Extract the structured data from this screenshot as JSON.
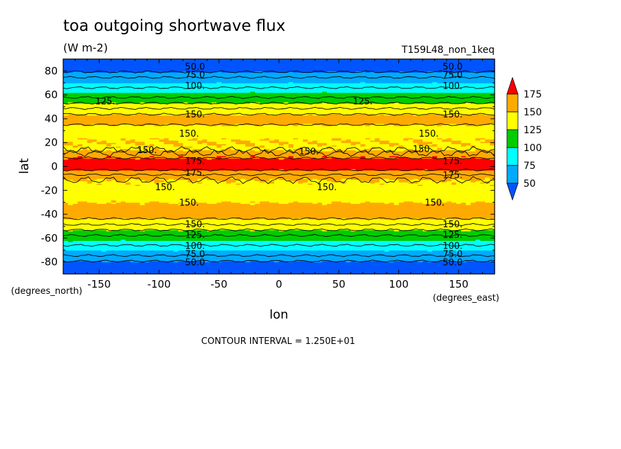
{
  "chart_data": {
    "type": "heatmap",
    "title": "toa outgoing shortwave flux",
    "units": "(W m-2)",
    "run_label": "T159L48_non_1keq",
    "xlabel": "lon",
    "ylabel": "lat",
    "x_unit_label": "(degrees_east)",
    "y_unit_label": "(degrees_north)",
    "xlim": [
      -180,
      180
    ],
    "ylim": [
      -90,
      90
    ],
    "x_ticks": [
      -150,
      -100,
      -50,
      0,
      50,
      100,
      150
    ],
    "x_tick_labels": [
      "-150",
      "-100",
      "-50",
      "0",
      "50",
      "100",
      "150"
    ],
    "y_ticks": [
      -80,
      -60,
      -40,
      -20,
      0,
      20,
      40,
      60,
      80
    ],
    "y_tick_labels": [
      "-80",
      "-60",
      "-40",
      "-20",
      "0",
      "20",
      "40",
      "60",
      "80"
    ],
    "levels": [
      50,
      75,
      100,
      125,
      150,
      175
    ],
    "level_labels": [
      "50",
      "75",
      "100",
      "125",
      "150",
      "175"
    ],
    "colors": [
      "#0055ff",
      "#00aaff",
      "#00ffff",
      "#00cc00",
      "#ffff00",
      "#ffaa00",
      "#ff0000"
    ],
    "colorbar": "right, extended both ends",
    "contour_interval_text": "CONTOUR INTERVAL = 1.250E+01",
    "zonal_profile": {
      "lat": [
        -90,
        -80,
        -70,
        -62,
        -58,
        -52,
        -46,
        -40,
        -30,
        -20,
        -12,
        -5,
        0,
        5,
        10,
        15,
        20,
        30,
        40,
        46,
        52,
        58,
        62,
        70,
        80,
        90
      ],
      "flux": [
        30,
        48,
        75,
        100,
        112,
        128,
        145,
        158,
        150,
        140,
        148,
        168,
        185,
        180,
        168,
        145,
        150,
        142,
        158,
        145,
        128,
        112,
        100,
        75,
        48,
        30
      ]
    },
    "contour_labels": [
      {
        "text": "50.0",
        "lon": -70,
        "lat": 84
      },
      {
        "text": "50.0",
        "lon": 145,
        "lat": 84
      },
      {
        "text": "75.0",
        "lon": -70,
        "lat": 77
      },
      {
        "text": "75.0",
        "lon": 145,
        "lat": 77
      },
      {
        "text": "100.",
        "lon": -70,
        "lat": 68
      },
      {
        "text": "100.",
        "lon": 145,
        "lat": 68
      },
      {
        "text": "125.",
        "lon": -145,
        "lat": 55
      },
      {
        "text": "125.",
        "lon": 70,
        "lat": 55
      },
      {
        "text": "150.",
        "lon": -70,
        "lat": 44
      },
      {
        "text": "150.",
        "lon": 145,
        "lat": 44
      },
      {
        "text": "150.",
        "lon": -75,
        "lat": 28
      },
      {
        "text": "150.",
        "lon": 125,
        "lat": 28
      },
      {
        "text": "150.",
        "lon": -110,
        "lat": 14
      },
      {
        "text": "150.",
        "lon": 25,
        "lat": 13
      },
      {
        "text": "150.",
        "lon": 120,
        "lat": 15
      },
      {
        "text": "175.",
        "lon": -70,
        "lat": 5
      },
      {
        "text": "175.",
        "lon": 145,
        "lat": 5
      },
      {
        "text": "175.",
        "lon": -70,
        "lat": -5
      },
      {
        "text": "175.",
        "lon": 145,
        "lat": -7
      },
      {
        "text": "150.",
        "lon": -95,
        "lat": -17
      },
      {
        "text": "150.",
        "lon": 40,
        "lat": -17
      },
      {
        "text": "150.",
        "lon": -75,
        "lat": -30
      },
      {
        "text": "150.",
        "lon": 130,
        "lat": -30
      },
      {
        "text": "150.",
        "lon": -70,
        "lat": -48
      },
      {
        "text": "150.",
        "lon": 145,
        "lat": -48
      },
      {
        "text": "125.",
        "lon": -70,
        "lat": -57
      },
      {
        "text": "125.",
        "lon": 145,
        "lat": -57
      },
      {
        "text": "100.",
        "lon": -70,
        "lat": -66
      },
      {
        "text": "100.",
        "lon": 145,
        "lat": -66
      },
      {
        "text": "75.0",
        "lon": -70,
        "lat": -73
      },
      {
        "text": "75.0",
        "lon": 145,
        "lat": -73
      },
      {
        "text": "50.0",
        "lon": -70,
        "lat": -80
      },
      {
        "text": "50.0",
        "lon": 145,
        "lat": -80
      }
    ]
  }
}
